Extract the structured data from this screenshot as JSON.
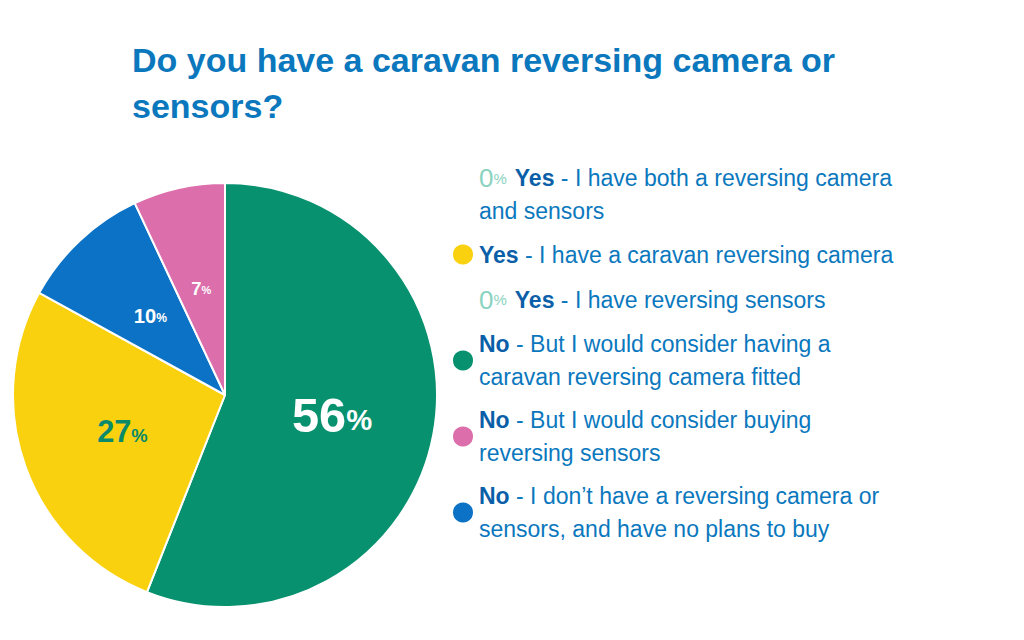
{
  "chart_data": {
    "type": "pie",
    "title": "Do you have a caravan reversing camera or sensors?",
    "categories": [
      "Yes - I have both a reversing camera and sensors",
      "Yes - I have a caravan reversing camera",
      "Yes - I have reversing sensors",
      "No - But I would consider having a caravan reversing camera fitted",
      "No - But I would consider buying reversing sensors",
      "No - I don’t have a reversing camera or sensors, and have no plans to buy"
    ],
    "values": [
      0,
      27,
      0,
      56,
      7,
      10
    ],
    "value_labels": [
      "0%",
      "27%",
      "0%",
      "56%",
      "7%",
      "10%"
    ],
    "colors": [
      "#8ad3c0",
      "#f9d10f",
      "#8ad3c0",
      "#07916f",
      "#dc6fab",
      "#0b72c5"
    ],
    "data_labels": true,
    "legend": "right"
  }
}
